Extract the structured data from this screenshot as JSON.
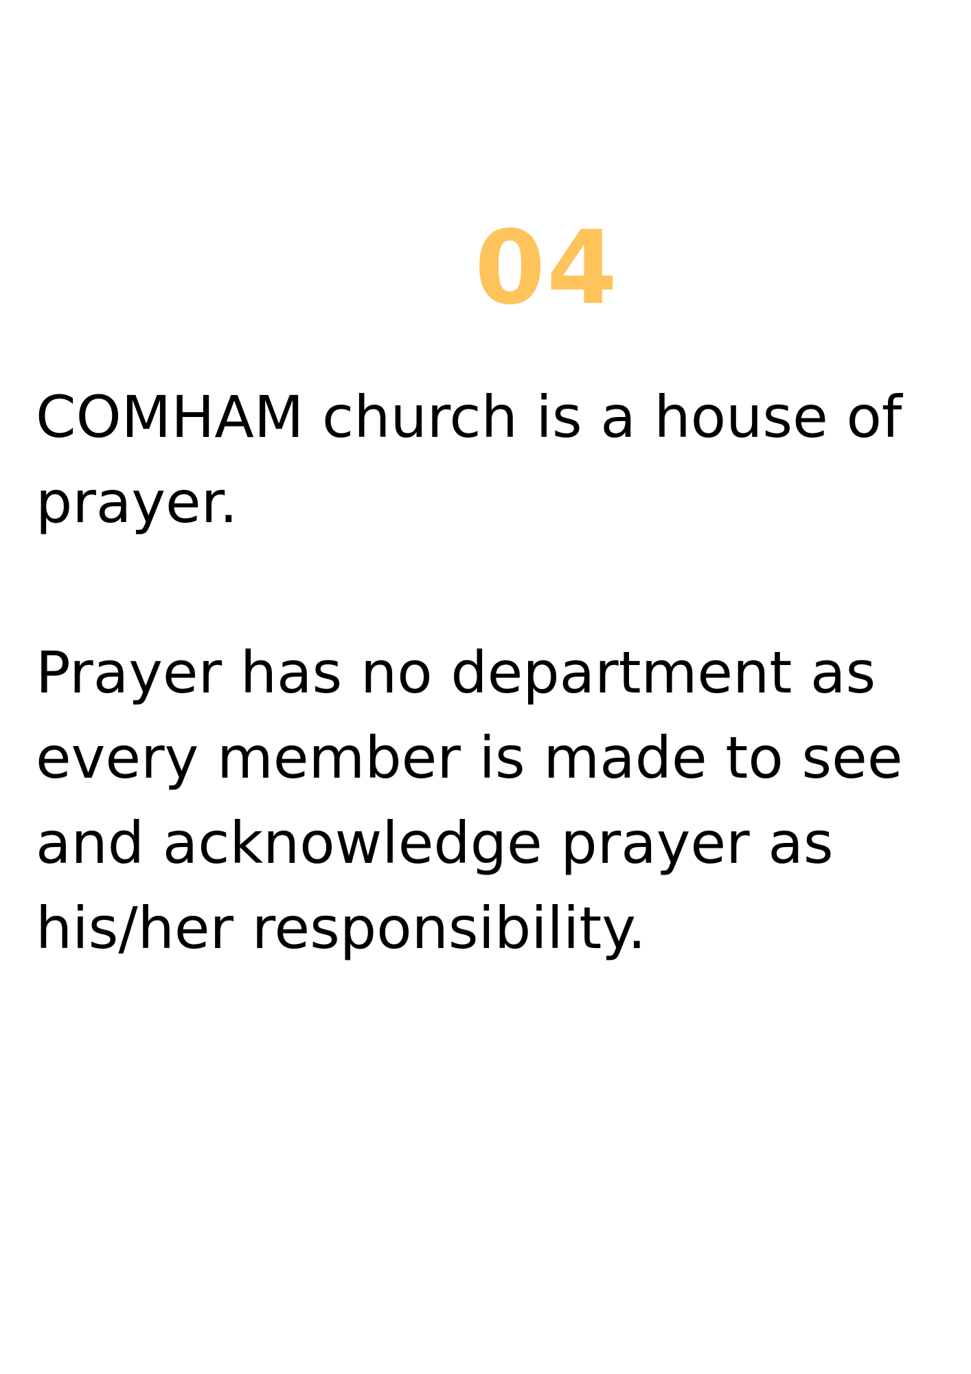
{
  "page_number": "04",
  "colors": {
    "accent": "#FFC35C",
    "text": "#000000",
    "background": "#FFFFFF"
  },
  "paragraphs": [
    "COMHAM church is a house of prayer.",
    "Prayer has no department as every member is made to see and acknowledge prayer as his/her responsibility."
  ]
}
